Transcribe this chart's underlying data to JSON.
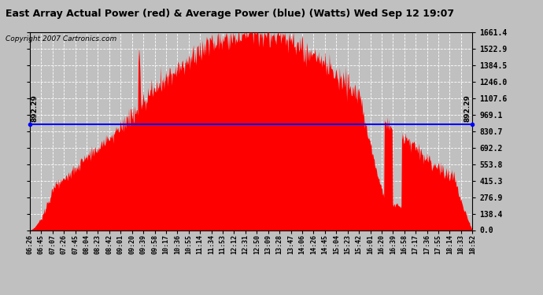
{
  "title": "East Array Actual Power (red) & Average Power (blue) (Watts) Wed Sep 12 19:07",
  "copyright": "Copyright 2007 Cartronics.com",
  "avg_power": 892.29,
  "y_max": 1661.4,
  "y_min": 0.0,
  "y_ticks": [
    0.0,
    138.4,
    276.9,
    415.3,
    553.8,
    692.2,
    830.7,
    969.1,
    1107.6,
    1246.0,
    1384.5,
    1522.9,
    1661.4
  ],
  "background_color": "#c0c0c0",
  "fill_color": "#ff0000",
  "avg_line_color": "#0000ff",
  "x_labels": [
    "06:26",
    "06:45",
    "07:07",
    "07:26",
    "07:45",
    "08:04",
    "08:23",
    "08:42",
    "09:01",
    "09:20",
    "09:39",
    "09:58",
    "10:17",
    "10:36",
    "10:55",
    "11:14",
    "11:34",
    "11:53",
    "12:12",
    "12:31",
    "12:50",
    "13:09",
    "13:28",
    "13:47",
    "14:06",
    "14:26",
    "14:45",
    "15:04",
    "15:23",
    "15:42",
    "16:01",
    "16:20",
    "16:39",
    "16:58",
    "17:17",
    "17:36",
    "17:55",
    "18:14",
    "18:33",
    "18:52"
  ]
}
